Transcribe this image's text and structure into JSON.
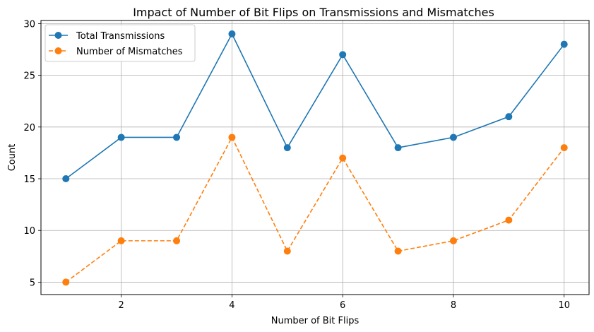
{
  "chart_data": {
    "type": "line",
    "title": "Impact of Number of Bit Flips on Transmissions and Mismatches",
    "xlabel": "Number of Bit Flips",
    "ylabel": "Count",
    "x": [
      1,
      2,
      3,
      4,
      5,
      6,
      7,
      8,
      9,
      10
    ],
    "xticks": [
      2,
      4,
      6,
      8,
      10
    ],
    "yticks": [
      5,
      10,
      15,
      20,
      25,
      30
    ],
    "xlim": [
      0.55,
      10.45
    ],
    "ylim": [
      3.8,
      30.3
    ],
    "grid": true,
    "legend_position": "top-left",
    "series": [
      {
        "name": "Total Transmissions",
        "values": [
          15,
          19,
          19,
          29,
          18,
          27,
          18,
          19,
          21,
          28
        ],
        "color": "#1f77b4",
        "style": "solid",
        "marker": "circle"
      },
      {
        "name": "Number of Mismatches",
        "values": [
          5,
          9,
          9,
          19,
          8,
          17,
          8,
          9,
          11,
          18
        ],
        "color": "#ff7f0e",
        "style": "dashed",
        "marker": "circle"
      }
    ]
  }
}
